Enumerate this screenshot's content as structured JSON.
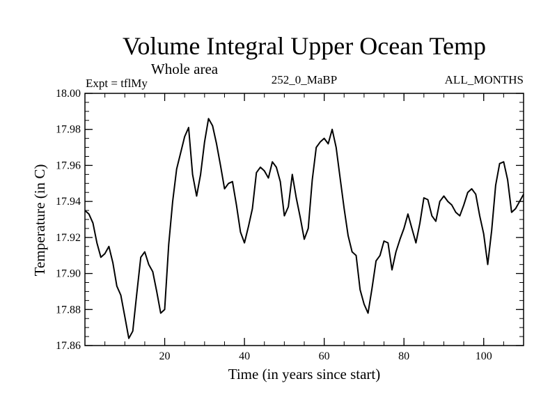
{
  "chart_data": {
    "type": "line",
    "title": "Volume Integral Upper Ocean Temp",
    "subtitle": "Whole area",
    "info_left": "Expt = tflMy",
    "info_center": "252_0_MaBP",
    "info_right": "ALL_MONTHS",
    "xlabel": "Time (in years since start)",
    "ylabel": "Temperature (in C)",
    "xlim": [
      0,
      110
    ],
    "ylim": [
      17.86,
      18.0
    ],
    "x_ticks": [
      20,
      40,
      60,
      80,
      100
    ],
    "x_tick_labels": [
      "20",
      "40",
      "60",
      "80",
      "100"
    ],
    "y_ticks": [
      17.86,
      17.88,
      17.9,
      17.92,
      17.94,
      17.96,
      17.98,
      18.0
    ],
    "y_tick_labels": [
      "17.86",
      "17.88",
      "17.90",
      "17.92",
      "17.94",
      "17.96",
      "17.98",
      "18.00"
    ],
    "x_minor_step": 5,
    "y_minor_step": 0.005,
    "series": [
      {
        "name": "Volume Integral Upper Ocean Temp",
        "x": [
          0,
          1,
          2,
          3,
          4,
          5,
          6,
          7,
          8,
          9,
          10,
          11,
          12,
          13,
          14,
          15,
          16,
          17,
          18,
          19,
          20,
          21,
          22,
          23,
          24,
          25,
          26,
          27,
          28,
          29,
          30,
          31,
          32,
          33,
          34,
          35,
          36,
          37,
          38,
          39,
          40,
          41,
          42,
          43,
          44,
          45,
          46,
          47,
          48,
          49,
          50,
          51,
          52,
          53,
          54,
          55,
          56,
          57,
          58,
          59,
          60,
          61,
          62,
          63,
          64,
          65,
          66,
          67,
          68,
          69,
          70,
          71,
          72,
          73,
          74,
          75,
          76,
          77,
          78,
          79,
          80,
          81,
          82,
          83,
          84,
          85,
          86,
          87,
          88,
          89,
          90,
          91,
          92,
          93,
          94,
          95,
          96,
          97,
          98,
          99,
          100,
          101,
          102,
          103,
          104,
          105,
          106,
          107,
          108,
          109,
          110
        ],
        "values": [
          17.935,
          17.933,
          17.928,
          17.917,
          17.909,
          17.911,
          17.915,
          17.906,
          17.893,
          17.888,
          17.876,
          17.864,
          17.868,
          17.889,
          17.909,
          17.912,
          17.905,
          17.901,
          17.89,
          17.878,
          17.88,
          17.916,
          17.94,
          17.958,
          17.967,
          17.976,
          17.981,
          17.955,
          17.943,
          17.955,
          17.973,
          17.986,
          17.982,
          17.972,
          17.96,
          17.947,
          17.95,
          17.951,
          17.938,
          17.923,
          17.917,
          17.926,
          17.936,
          17.956,
          17.959,
          17.957,
          17.953,
          17.962,
          17.959,
          17.951,
          17.932,
          17.937,
          17.955,
          17.942,
          17.931,
          17.919,
          17.925,
          17.952,
          17.97,
          17.973,
          17.975,
          17.972,
          17.98,
          17.97,
          17.953,
          17.936,
          17.921,
          17.912,
          17.91,
          17.891,
          17.883,
          17.878,
          17.892,
          17.907,
          17.91,
          17.918,
          17.917,
          17.902,
          17.912,
          17.919,
          17.925,
          17.933,
          17.925,
          17.917,
          17.928,
          17.942,
          17.941,
          17.932,
          17.929,
          17.94,
          17.943,
          17.94,
          17.938,
          17.934,
          17.932,
          17.938,
          17.945,
          17.947,
          17.944,
          17.932,
          17.922,
          17.905,
          17.924,
          17.949,
          17.961,
          17.962,
          17.952,
          17.934,
          17.936,
          17.94,
          17.944
        ]
      }
    ]
  }
}
